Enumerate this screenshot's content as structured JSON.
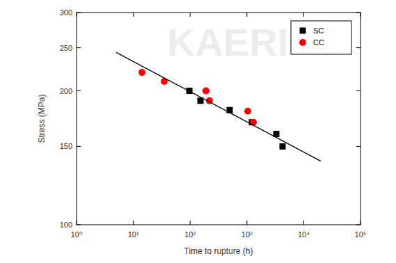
{
  "chart_data": {
    "type": "scatter",
    "x_label": "Time to rupture (h)",
    "y_label": "Stress (MPa)",
    "annotations": [
      {
        "text": "KAERI"
      }
    ],
    "log": true,
    "grid": false,
    "legend": "top-right",
    "xlim": [
      1,
      100000
    ],
    "xticks": [
      {
        "value": 1,
        "label": "10⁰"
      },
      {
        "value": 10,
        "label": "10¹"
      },
      {
        "value": 100,
        "label": "10²"
      },
      {
        "value": 1000,
        "label": "10³"
      },
      {
        "value": 10000,
        "label": "10⁴"
      },
      {
        "value": 100000,
        "label": "10⁵"
      }
    ],
    "ylim": [
      100,
      300
    ],
    "yticks": [
      100,
      150,
      200,
      250,
      300
    ],
    "series": [
      {
        "name": "SC",
        "color": "#000000",
        "marker": "square",
        "x": [
          97,
          152,
          497,
          1225,
          3290,
          4240
        ],
        "values": [
          200,
          190,
          181,
          170,
          160,
          150
        ]
      },
      {
        "name": "CC",
        "color": "#ff0000",
        "marker": "circle",
        "x": [
          14.2,
          35,
          190,
          219,
          1035,
          1297
        ],
        "values": [
          220,
          210,
          200,
          190,
          180,
          170
        ]
      },
      {
        "type": "line",
        "color": "#000000",
        "line_style": "solid",
        "x": [
          5,
          20000
        ],
        "values": [
          244,
          139
        ]
      }
    ]
  }
}
